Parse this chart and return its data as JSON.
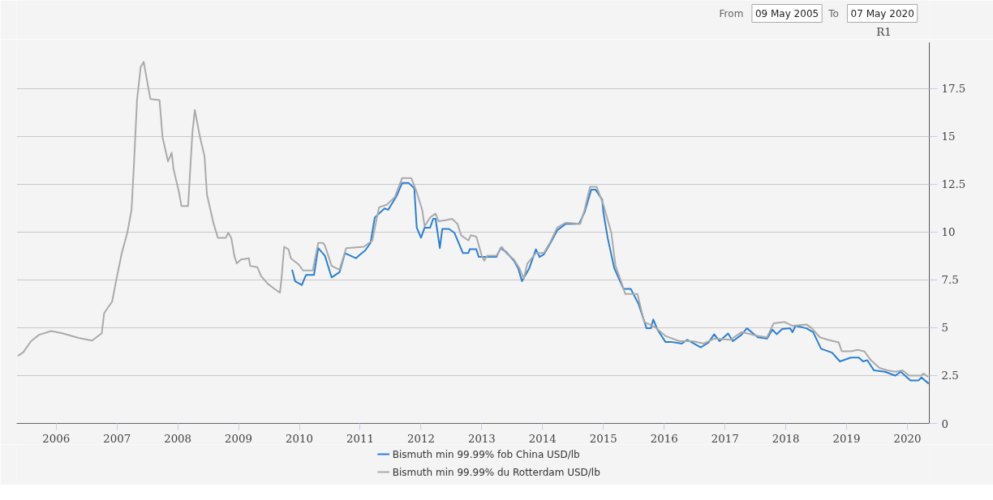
{
  "chart_data": {
    "type": "line",
    "ylabel": "R1",
    "annotations": [
      "From",
      "09 May 2005",
      "To",
      "07 May 2020"
    ],
    "xlim": [
      2005.35,
      2020.36
    ],
    "xticks": [
      2006,
      2007,
      2008,
      2009,
      2010,
      2011,
      2012,
      2013,
      2014,
      2015,
      2016,
      2017,
      2018,
      2019,
      2020
    ],
    "ylim": [
      0,
      19.9
    ],
    "yticks": [
      0,
      2.5,
      5,
      7.5,
      10,
      12.5,
      15,
      17.5
    ],
    "grid": "y",
    "legend": "bottom",
    "series": [
      {
        "name": "Bismuth min 99.99% fob China USD/lb",
        "color": "#2a7fd4",
        "x": [
          2009.88,
          2009.93,
          2010.04,
          2010.11,
          2010.24,
          2010.31,
          2010.42,
          2010.53,
          2010.66,
          2010.75,
          2010.93,
          2011.0,
          2011.08,
          2011.17,
          2011.24,
          2011.4,
          2011.46,
          2011.6,
          2011.69,
          2011.8,
          2011.89,
          2011.93,
          2012.0,
          2012.06,
          2012.15,
          2012.2,
          2012.24,
          2012.31,
          2012.35,
          2012.46,
          2012.55,
          2012.69,
          2012.78,
          2012.8,
          2012.91,
          2012.95,
          2013.24,
          2013.31,
          2013.4,
          2013.53,
          2013.6,
          2013.66,
          2013.78,
          2013.89,
          2013.95,
          2014.02,
          2014.13,
          2014.24,
          2014.38,
          2014.6,
          2014.69,
          2014.8,
          2014.87,
          2014.98,
          2015.0,
          2015.07,
          2015.18,
          2015.33,
          2015.45,
          2015.58,
          2015.71,
          2015.78,
          2015.82,
          2015.89,
          2016.02,
          2016.11,
          2016.29,
          2016.38,
          2016.6,
          2016.73,
          2016.82,
          2016.91,
          2017.05,
          2017.13,
          2017.27,
          2017.36,
          2017.54,
          2017.69,
          2017.78,
          2017.85,
          2017.94,
          2018.07,
          2018.11,
          2018.16,
          2018.34,
          2018.45,
          2018.58,
          2018.76,
          2018.89,
          2019.07,
          2019.2,
          2019.27,
          2019.34,
          2019.45,
          2019.63,
          2019.8,
          2019.89,
          2020.05,
          2020.18,
          2020.23,
          2020.35
        ],
        "values": [
          8.03,
          7.43,
          7.23,
          7.76,
          7.76,
          9.16,
          8.76,
          7.63,
          7.9,
          8.9,
          8.63,
          8.83,
          9.03,
          9.43,
          10.76,
          11.23,
          11.16,
          11.89,
          12.56,
          12.56,
          12.29,
          10.23,
          9.7,
          10.23,
          10.23,
          10.69,
          10.69,
          9.16,
          10.16,
          10.16,
          9.96,
          8.9,
          8.9,
          9.1,
          9.1,
          8.7,
          8.7,
          9.16,
          8.96,
          8.5,
          8.1,
          7.43,
          8.1,
          9.1,
          8.7,
          8.83,
          9.43,
          10.09,
          10.43,
          10.43,
          11.03,
          12.22,
          12.22,
          11.69,
          11.03,
          9.7,
          8.1,
          7.03,
          7.03,
          6.23,
          4.97,
          4.97,
          5.43,
          4.9,
          4.26,
          4.26,
          4.17,
          4.37,
          3.97,
          4.23,
          4.66,
          4.3,
          4.7,
          4.3,
          4.63,
          4.97,
          4.5,
          4.43,
          4.9,
          4.66,
          4.93,
          4.97,
          4.77,
          5.1,
          4.97,
          4.77,
          3.9,
          3.7,
          3.24,
          3.44,
          3.44,
          3.24,
          3.3,
          2.77,
          2.7,
          2.5,
          2.7,
          2.24,
          2.24,
          2.4,
          2.08
        ]
      },
      {
        "name": "Bismuth min 99.99% du Rotterdam USD/lb",
        "color": "#aaaaaa",
        "x": [
          2005.37,
          2005.46,
          2005.59,
          2005.72,
          2005.92,
          2006.1,
          2006.37,
          2006.59,
          2006.75,
          2006.79,
          2006.92,
          2006.99,
          2007.08,
          2007.17,
          2007.24,
          2007.28,
          2007.33,
          2007.39,
          2007.44,
          2007.5,
          2007.55,
          2007.7,
          2007.75,
          2007.84,
          2007.9,
          2007.93,
          2008.02,
          2008.06,
          2008.17,
          2008.24,
          2008.28,
          2008.37,
          2008.44,
          2008.48,
          2008.59,
          2008.66,
          2008.79,
          2008.83,
          2008.88,
          2008.93,
          2008.97,
          2009.04,
          2009.17,
          2009.19,
          2009.31,
          2009.37,
          2009.48,
          2009.59,
          2009.68,
          2009.71,
          2009.75,
          2009.82,
          2009.86,
          2009.99,
          2010.06,
          2010.22,
          2010.31,
          2010.39,
          2010.42,
          2010.53,
          2010.66,
          2010.77,
          2011.06,
          2011.2,
          2011.31,
          2011.44,
          2011.57,
          2011.69,
          2011.84,
          2011.93,
          2012.02,
          2012.06,
          2012.15,
          2012.24,
          2012.29,
          2012.42,
          2012.51,
          2012.6,
          2012.66,
          2012.78,
          2012.82,
          2012.91,
          2013.0,
          2013.04,
          2013.09,
          2013.24,
          2013.33,
          2013.4,
          2013.53,
          2013.62,
          2013.69,
          2013.75,
          2013.89,
          2014.02,
          2014.13,
          2014.24,
          2014.38,
          2014.62,
          2014.69,
          2014.78,
          2014.89,
          2015.0,
          2015.13,
          2015.2,
          2015.29,
          2015.36,
          2015.56,
          2015.67,
          2015.76,
          2015.85,
          2016.02,
          2016.25,
          2016.47,
          2016.65,
          2016.82,
          2017.09,
          2017.27,
          2017.54,
          2017.69,
          2017.8,
          2017.98,
          2018.11,
          2018.34,
          2018.43,
          2018.56,
          2018.69,
          2018.87,
          2018.92,
          2019.07,
          2019.18,
          2019.29,
          2019.4,
          2019.54,
          2019.67,
          2019.8,
          2019.92,
          2020.03,
          2020.23,
          2020.26,
          2020.34
        ],
        "values": [
          3.53,
          3.72,
          4.31,
          4.63,
          4.83,
          4.71,
          4.47,
          4.33,
          4.71,
          5.77,
          6.36,
          7.51,
          8.91,
          9.96,
          11.16,
          13.56,
          16.89,
          18.62,
          18.89,
          17.82,
          16.95,
          16.89,
          14.95,
          13.69,
          14.15,
          13.29,
          12.09,
          11.36,
          11.36,
          15.15,
          16.38,
          14.89,
          13.96,
          11.96,
          10.43,
          9.7,
          9.7,
          9.96,
          9.7,
          8.76,
          8.36,
          8.56,
          8.63,
          8.23,
          8.16,
          7.7,
          7.3,
          7.03,
          6.83,
          7.7,
          9.23,
          9.1,
          8.63,
          8.3,
          7.99,
          7.99,
          9.43,
          9.43,
          9.3,
          8.23,
          8.03,
          9.16,
          9.23,
          9.56,
          11.29,
          11.43,
          11.83,
          12.82,
          12.82,
          12.09,
          11.16,
          10.3,
          10.76,
          10.96,
          10.56,
          10.63,
          10.69,
          10.43,
          9.83,
          9.56,
          9.83,
          9.76,
          8.76,
          8.5,
          8.76,
          8.76,
          9.23,
          8.9,
          8.56,
          8.1,
          7.56,
          8.36,
          8.9,
          8.9,
          9.5,
          10.23,
          10.49,
          10.43,
          11.16,
          12.36,
          12.36,
          11.43,
          9.96,
          8.23,
          7.43,
          6.76,
          6.76,
          5.3,
          5.17,
          5.03,
          4.57,
          4.3,
          4.3,
          4.17,
          4.43,
          4.37,
          4.77,
          4.57,
          4.5,
          5.23,
          5.3,
          5.1,
          5.17,
          4.97,
          4.5,
          4.37,
          4.23,
          3.77,
          3.77,
          3.84,
          3.77,
          3.3,
          2.9,
          2.77,
          2.7,
          2.77,
          2.5,
          2.5,
          2.61,
          2.44
        ]
      }
    ]
  }
}
